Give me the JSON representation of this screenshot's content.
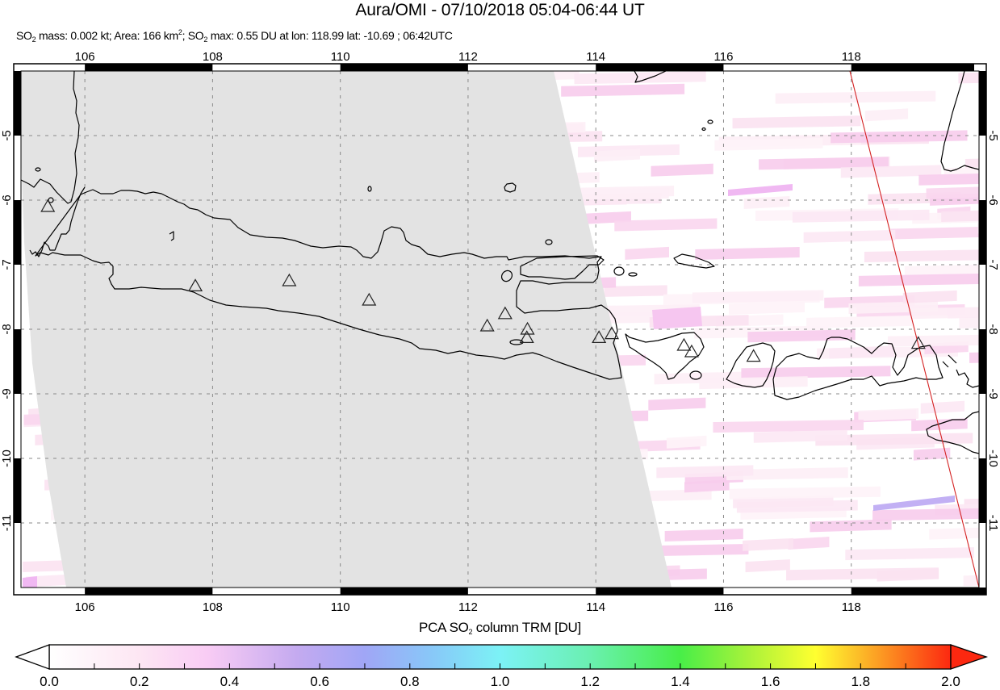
{
  "header": {
    "title": "Aura/OMI - 07/10/2018 05:04-06:44 UT",
    "subtitle": {
      "so2_label": "SO",
      "so2_sub": "2",
      "mass_text": " mass: 0.002 kt; Area: 166 km",
      "area_sup": "2",
      "sep": "; SO",
      "so2_sub2": "2",
      "max_text": " max: 0.55 DU at lon: 118.99 lat: -10.69 ; 06:42UTC"
    },
    "values": {
      "so2_mass_kt": "0.002",
      "area_km2": "166",
      "so2_max_du": "0.55",
      "max_lon": "118.99",
      "max_lat": "-10.69",
      "max_time": "06:42UTC"
    }
  },
  "map": {
    "lon_range": [
      105,
      120
    ],
    "lat_range": [
      -12,
      -4
    ],
    "lon_ticks": [
      "106",
      "108",
      "110",
      "112",
      "114",
      "116",
      "118"
    ],
    "lat_ticks": [
      "-5",
      "-6",
      "-7",
      "-8",
      "-9",
      "-10",
      "-11"
    ],
    "colors": {
      "no_data_swath": "#e3e3e3",
      "coastline": "#000000",
      "gridline": "#888888",
      "orbit_track": "#d42020",
      "volcano_marker": "#000000"
    },
    "volcanoes": [
      {
        "lon": 105.42,
        "lat": -6.1
      },
      {
        "lon": 107.73,
        "lat": -7.33
      },
      {
        "lon": 109.2,
        "lat": -7.25
      },
      {
        "lon": 110.45,
        "lat": -7.55
      },
      {
        "lon": 112.3,
        "lat": -7.95
      },
      {
        "lon": 112.58,
        "lat": -7.76
      },
      {
        "lon": 112.93,
        "lat": -8.0
      },
      {
        "lon": 112.92,
        "lat": -8.13
      },
      {
        "lon": 114.05,
        "lat": -8.13
      },
      {
        "lon": 114.25,
        "lat": -8.07
      },
      {
        "lon": 115.38,
        "lat": -8.25
      },
      {
        "lon": 115.5,
        "lat": -8.35
      },
      {
        "lon": 116.47,
        "lat": -8.42
      },
      {
        "lon": 119.05,
        "lat": -8.22
      }
    ]
  },
  "colorbar": {
    "title_pre": "PCA SO",
    "title_sub": "2",
    "title_post": " column TRM [DU]",
    "min": 0.0,
    "max": 2.0,
    "labels": [
      "0.0",
      "0.2",
      "0.4",
      "0.6",
      "0.8",
      "1.0",
      "1.2",
      "1.4",
      "1.6",
      "1.8",
      "2.0"
    ],
    "stops": [
      {
        "v": 0.0,
        "color": "#ffffff"
      },
      {
        "v": 0.2,
        "color": "#fde6f3"
      },
      {
        "v": 0.35,
        "color": "#f9ccf4"
      },
      {
        "v": 0.55,
        "color": "#c4aaf0"
      },
      {
        "v": 0.7,
        "color": "#a0a6f6"
      },
      {
        "v": 0.85,
        "color": "#88c8f8"
      },
      {
        "v": 1.0,
        "color": "#7cf2f6"
      },
      {
        "v": 1.2,
        "color": "#6af0b0"
      },
      {
        "v": 1.4,
        "color": "#48ee48"
      },
      {
        "v": 1.55,
        "color": "#a8f23a"
      },
      {
        "v": 1.7,
        "color": "#ffff30"
      },
      {
        "v": 1.8,
        "color": "#fcba28"
      },
      {
        "v": 2.0,
        "color": "#fc2810"
      }
    ]
  }
}
